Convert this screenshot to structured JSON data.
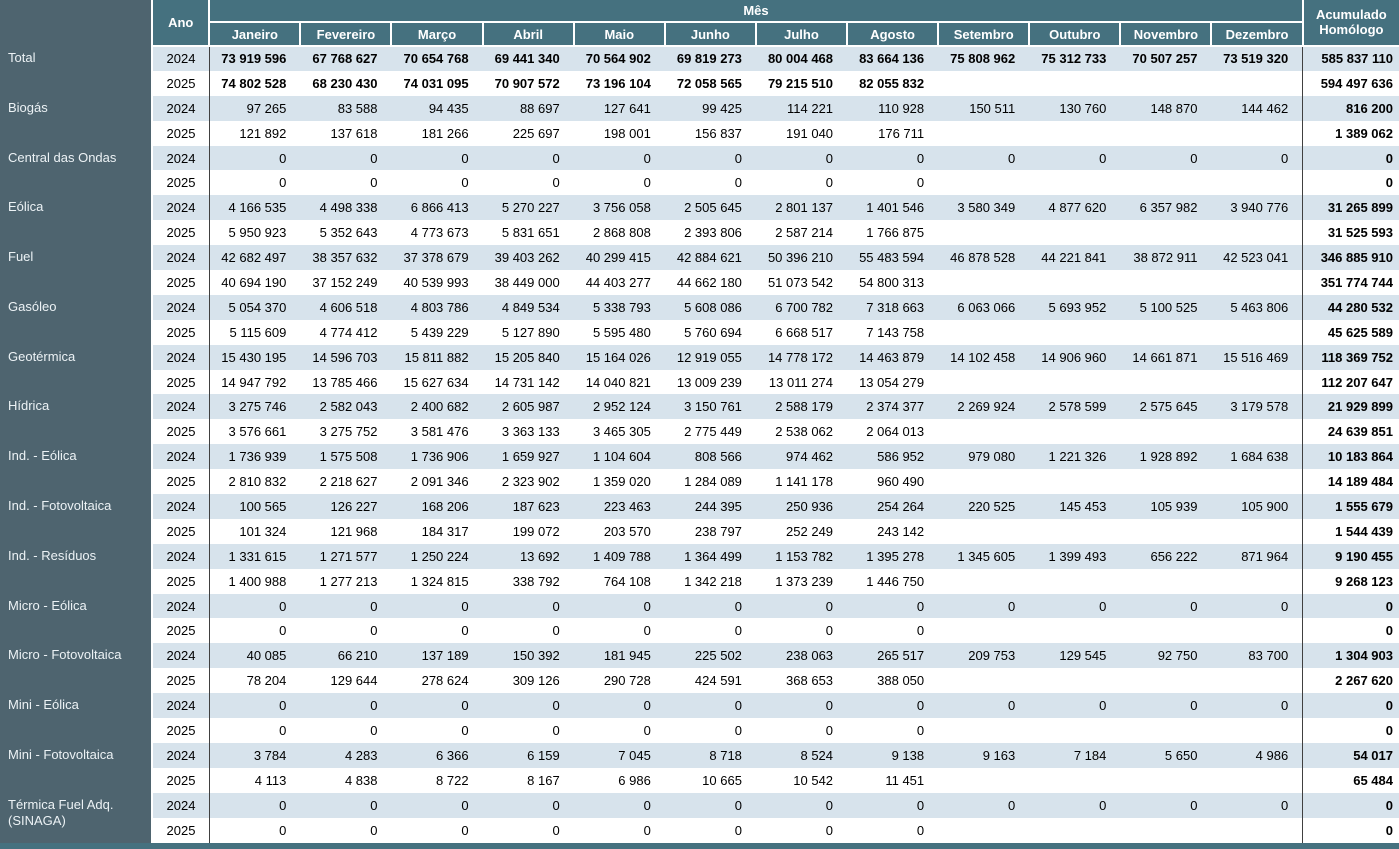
{
  "colors": {
    "header_bg": "#45717F",
    "sidebar_bg": "#4E646F",
    "row_even": "#D7E3EC",
    "line_dark": "#404040",
    "strip": "#45717F"
  },
  "header": {
    "ano_label": "Ano",
    "mes_label": "Mês",
    "months": [
      "Janeiro",
      "Fevereiro",
      "Março",
      "Abril",
      "Maio",
      "Junho",
      "Julho",
      "Agosto",
      "Setembro",
      "Outubro",
      "Novembro",
      "Dezembro"
    ],
    "accumulated_label": "Acumulado Homólogo"
  },
  "rows": [
    {
      "category": "Total",
      "bold": true,
      "years": [
        {
          "year": "2024",
          "values": [
            "73 919 596",
            "67 768 627",
            "70 654 768",
            "69 441 340",
            "70 564 902",
            "69 819 273",
            "80 004 468",
            "83 664 136",
            "75 808 962",
            "75 312 733",
            "70 507 257",
            "73 519 320"
          ],
          "accumulated": "585 837 110"
        },
        {
          "year": "2025",
          "values": [
            "74 802 528",
            "68 230 430",
            "74 031 095",
            "70 907 572",
            "73 196 104",
            "72 058 565",
            "79 215 510",
            "82 055 832"
          ],
          "accumulated": "594 497 636"
        }
      ]
    },
    {
      "category": "Biogás",
      "bold": false,
      "years": [
        {
          "year": "2024",
          "values": [
            "97 265",
            "83 588",
            "94 435",
            "88 697",
            "127 641",
            "99 425",
            "114 221",
            "110 928",
            "150 511",
            "130 760",
            "148 870",
            "144 462"
          ],
          "accumulated": "816 200"
        },
        {
          "year": "2025",
          "values": [
            "121 892",
            "137 618",
            "181 266",
            "225 697",
            "198 001",
            "156 837",
            "191 040",
            "176 711"
          ],
          "accumulated": "1 389 062"
        }
      ]
    },
    {
      "category": "Central das Ondas",
      "bold": false,
      "years": [
        {
          "year": "2024",
          "values": [
            "0",
            "0",
            "0",
            "0",
            "0",
            "0",
            "0",
            "0",
            "0",
            "0",
            "0",
            "0"
          ],
          "accumulated": "0"
        },
        {
          "year": "2025",
          "values": [
            "0",
            "0",
            "0",
            "0",
            "0",
            "0",
            "0",
            "0"
          ],
          "accumulated": "0"
        }
      ]
    },
    {
      "category": "Eólica",
      "bold": false,
      "years": [
        {
          "year": "2024",
          "values": [
            "4 166 535",
            "4 498 338",
            "6 866 413",
            "5 270 227",
            "3 756 058",
            "2 505 645",
            "2 801 137",
            "1 401 546",
            "3 580 349",
            "4 877 620",
            "6 357 982",
            "3 940 776"
          ],
          "accumulated": "31 265 899"
        },
        {
          "year": "2025",
          "values": [
            "5 950 923",
            "5 352 643",
            "4 773 673",
            "5 831 651",
            "2 868 808",
            "2 393 806",
            "2 587 214",
            "1 766 875"
          ],
          "accumulated": "31 525 593"
        }
      ]
    },
    {
      "category": "Fuel",
      "bold": false,
      "years": [
        {
          "year": "2024",
          "values": [
            "42 682 497",
            "38 357 632",
            "37 378 679",
            "39 403 262",
            "40 299 415",
            "42 884 621",
            "50 396 210",
            "55 483 594",
            "46 878 528",
            "44 221 841",
            "38 872 911",
            "42 523 041"
          ],
          "accumulated": "346 885 910"
        },
        {
          "year": "2025",
          "values": [
            "40 694 190",
            "37 152 249",
            "40 539 993",
            "38 449 000",
            "44 403 277",
            "44 662 180",
            "51 073 542",
            "54 800 313"
          ],
          "accumulated": "351 774 744"
        }
      ]
    },
    {
      "category": "Gasóleo",
      "bold": false,
      "years": [
        {
          "year": "2024",
          "values": [
            "5 054 370",
            "4 606 518",
            "4 803 786",
            "4 849 534",
            "5 338 793",
            "5 608 086",
            "6 700 782",
            "7 318 663",
            "6 063 066",
            "5 693 952",
            "5 100 525",
            "5 463 806"
          ],
          "accumulated": "44 280 532"
        },
        {
          "year": "2025",
          "values": [
            "5 115 609",
            "4 774 412",
            "5 439 229",
            "5 127 890",
            "5 595 480",
            "5 760 694",
            "6 668 517",
            "7 143 758"
          ],
          "accumulated": "45 625 589"
        }
      ]
    },
    {
      "category": "Geotérmica",
      "bold": false,
      "years": [
        {
          "year": "2024",
          "values": [
            "15 430 195",
            "14 596 703",
            "15 811 882",
            "15 205 840",
            "15 164 026",
            "12 919 055",
            "14 778 172",
            "14 463 879",
            "14 102 458",
            "14 906 960",
            "14 661 871",
            "15 516 469"
          ],
          "accumulated": "118 369 752"
        },
        {
          "year": "2025",
          "values": [
            "14 947 792",
            "13 785 466",
            "15 627 634",
            "14 731 142",
            "14 040 821",
            "13 009 239",
            "13 011 274",
            "13 054 279"
          ],
          "accumulated": "112 207 647"
        }
      ]
    },
    {
      "category": "Hídrica",
      "bold": false,
      "years": [
        {
          "year": "2024",
          "values": [
            "3 275 746",
            "2 582 043",
            "2 400 682",
            "2 605 987",
            "2 952 124",
            "3 150 761",
            "2 588 179",
            "2 374 377",
            "2 269 924",
            "2 578 599",
            "2 575 645",
            "3 179 578"
          ],
          "accumulated": "21 929 899"
        },
        {
          "year": "2025",
          "values": [
            "3 576 661",
            "3 275 752",
            "3 581 476",
            "3 363 133",
            "3 465 305",
            "2 775 449",
            "2 538 062",
            "2 064 013"
          ],
          "accumulated": "24 639 851"
        }
      ]
    },
    {
      "category": "Ind. - Eólica",
      "bold": false,
      "years": [
        {
          "year": "2024",
          "values": [
            "1 736 939",
            "1 575 508",
            "1 736 906",
            "1 659 927",
            "1 104 604",
            "808 566",
            "974 462",
            "586 952",
            "979 080",
            "1 221 326",
            "1 928 892",
            "1 684 638"
          ],
          "accumulated": "10 183 864"
        },
        {
          "year": "2025",
          "values": [
            "2 810 832",
            "2 218 627",
            "2 091 346",
            "2 323 902",
            "1 359 020",
            "1 284 089",
            "1 141 178",
            "960 490"
          ],
          "accumulated": "14 189 484"
        }
      ]
    },
    {
      "category": "Ind. - Fotovoltaica",
      "bold": false,
      "years": [
        {
          "year": "2024",
          "values": [
            "100 565",
            "126 227",
            "168 206",
            "187 623",
            "223 463",
            "244 395",
            "250 936",
            "254 264",
            "220 525",
            "145 453",
            "105 939",
            "105 900"
          ],
          "accumulated": "1 555 679"
        },
        {
          "year": "2025",
          "values": [
            "101 324",
            "121 968",
            "184 317",
            "199 072",
            "203 570",
            "238 797",
            "252 249",
            "243 142"
          ],
          "accumulated": "1 544 439"
        }
      ]
    },
    {
      "category": "Ind. - Resíduos",
      "bold": false,
      "years": [
        {
          "year": "2024",
          "values": [
            "1 331 615",
            "1 271 577",
            "1 250 224",
            "13 692",
            "1 409 788",
            "1 364 499",
            "1 153 782",
            "1 395 278",
            "1 345 605",
            "1 399 493",
            "656 222",
            "871 964"
          ],
          "accumulated": "9 190 455"
        },
        {
          "year": "2025",
          "values": [
            "1 400 988",
            "1 277 213",
            "1 324 815",
            "338 792",
            "764 108",
            "1 342 218",
            "1 373 239",
            "1 446 750"
          ],
          "accumulated": "9 268 123"
        }
      ]
    },
    {
      "category": "Micro - Eólica",
      "bold": false,
      "years": [
        {
          "year": "2024",
          "values": [
            "0",
            "0",
            "0",
            "0",
            "0",
            "0",
            "0",
            "0",
            "0",
            "0",
            "0",
            "0"
          ],
          "accumulated": "0"
        },
        {
          "year": "2025",
          "values": [
            "0",
            "0",
            "0",
            "0",
            "0",
            "0",
            "0",
            "0"
          ],
          "accumulated": "0"
        }
      ]
    },
    {
      "category": "Micro - Fotovoltaica",
      "bold": false,
      "years": [
        {
          "year": "2024",
          "values": [
            "40 085",
            "66 210",
            "137 189",
            "150 392",
            "181 945",
            "225 502",
            "238 063",
            "265 517",
            "209 753",
            "129 545",
            "92 750",
            "83 700"
          ],
          "accumulated": "1 304 903"
        },
        {
          "year": "2025",
          "values": [
            "78 204",
            "129 644",
            "278 624",
            "309 126",
            "290 728",
            "424 591",
            "368 653",
            "388 050"
          ],
          "accumulated": "2 267 620"
        }
      ]
    },
    {
      "category": "Mini - Eólica",
      "bold": false,
      "years": [
        {
          "year": "2024",
          "values": [
            "0",
            "0",
            "0",
            "0",
            "0",
            "0",
            "0",
            "0",
            "0",
            "0",
            "0",
            "0"
          ],
          "accumulated": "0"
        },
        {
          "year": "2025",
          "values": [
            "0",
            "0",
            "0",
            "0",
            "0",
            "0",
            "0",
            "0"
          ],
          "accumulated": "0"
        }
      ]
    },
    {
      "category": "Mini - Fotovoltaica",
      "bold": false,
      "years": [
        {
          "year": "2024",
          "values": [
            "3 784",
            "4 283",
            "6 366",
            "6 159",
            "7 045",
            "8 718",
            "8 524",
            "9 138",
            "9 163",
            "7 184",
            "5 650",
            "4 986"
          ],
          "accumulated": "54 017"
        },
        {
          "year": "2025",
          "values": [
            "4 113",
            "4 838",
            "8 722",
            "8 167",
            "6 986",
            "10 665",
            "10 542",
            "11 451"
          ],
          "accumulated": "65 484"
        }
      ]
    },
    {
      "category": "Térmica Fuel Adq. (SINAGA)",
      "bold": false,
      "years": [
        {
          "year": "2024",
          "values": [
            "0",
            "0",
            "0",
            "0",
            "0",
            "0",
            "0",
            "0",
            "0",
            "0",
            "0",
            "0"
          ],
          "accumulated": "0"
        },
        {
          "year": "2025",
          "values": [
            "0",
            "0",
            "0",
            "0",
            "0",
            "0",
            "0",
            "0"
          ],
          "accumulated": "0"
        }
      ]
    }
  ]
}
